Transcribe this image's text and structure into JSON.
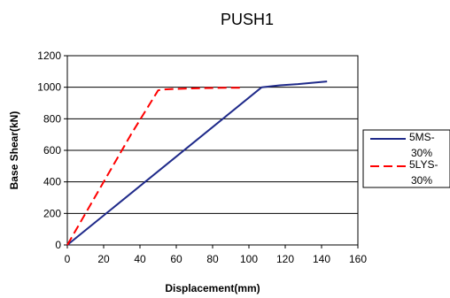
{
  "chart_data": {
    "type": "line",
    "title": "PUSH1",
    "xlabel": "Displacement(mm)",
    "ylabel": "Base Shear(kN)",
    "xlim": [
      0,
      160
    ],
    "ylim": [
      0,
      1200
    ],
    "xticks": [
      0,
      20,
      40,
      60,
      80,
      100,
      120,
      140,
      160
    ],
    "yticks": [
      0,
      200,
      400,
      600,
      800,
      1000,
      1200
    ],
    "grid": "horizontal",
    "legend": "right",
    "series": [
      {
        "name_lines": [
          "5MS-",
          "30%"
        ],
        "color": "#1f2a8a",
        "dash": "solid",
        "points": [
          [
            0,
            0
          ],
          [
            107,
            1000
          ],
          [
            117,
            1012
          ],
          [
            127,
            1020
          ],
          [
            143,
            1037
          ]
        ]
      },
      {
        "name_lines": [
          "5LYS-",
          "30%"
        ],
        "color": "#ff0000",
        "dash": "dashed",
        "points": [
          [
            0,
            0
          ],
          [
            20,
            400
          ],
          [
            35,
            700
          ],
          [
            50,
            980
          ],
          [
            52,
            985
          ],
          [
            60,
            990
          ],
          [
            75,
            995
          ],
          [
            90,
            997
          ],
          [
            95,
            997
          ]
        ]
      }
    ]
  }
}
